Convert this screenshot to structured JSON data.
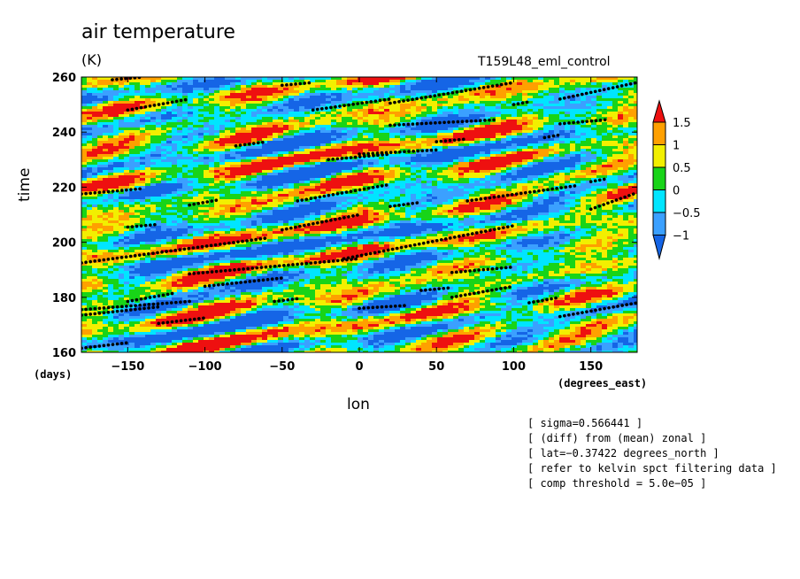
{
  "chart_data": {
    "type": "heatmap",
    "title": "air temperature",
    "units": "(K)",
    "experiment": "T159L48_eml_control",
    "xlabel": "lon",
    "ylabel": "time",
    "x_units": "(degrees_east)",
    "y_units": "(days)",
    "xlim": [
      -180,
      180
    ],
    "ylim": [
      160,
      260
    ],
    "x_ticks": [
      -150,
      -100,
      -50,
      0,
      50,
      100,
      150
    ],
    "y_ticks": [
      160,
      180,
      200,
      220,
      240,
      260
    ],
    "x_tick_labels": [
      "−150",
      "−100",
      "−50",
      "0",
      "50",
      "100",
      "150"
    ],
    "y_tick_labels": [
      "160",
      "180",
      "200",
      "220",
      "240",
      "260"
    ],
    "colorbar": {
      "levels": [
        -1,
        -0.5,
        0,
        0.5,
        1,
        1.5
      ],
      "labels": [
        "−1",
        "−0.5",
        "0",
        "0.5",
        "1",
        "1.5"
      ],
      "colors": [
        "#1565e6",
        "#3ba0ff",
        "#00e5ff",
        "#18d418",
        "#f2ef00",
        "#ffa000",
        "#ee1010"
      ]
    },
    "kelvin_signal_tracks": [
      {
        "lon": [
          -180,
          -150
        ],
        "time": [
          161.5,
          163.5
        ]
      },
      {
        "lon": [
          -180,
          -130
        ],
        "time": [
          173.5,
          176.5
        ]
      },
      {
        "lon": [
          -180,
          -110
        ],
        "time": [
          175.5,
          178.5
        ]
      },
      {
        "lon": [
          -150,
          -120
        ],
        "time": [
          178.5,
          181.5
        ]
      },
      {
        "lon": [
          -130,
          -100
        ],
        "time": [
          170.5,
          172.5
        ]
      },
      {
        "lon": [
          -180,
          -60
        ],
        "time": [
          192.5,
          201.5
        ]
      },
      {
        "lon": [
          -150,
          -130
        ],
        "time": [
          205.5,
          206.5
        ]
      },
      {
        "lon": [
          -110,
          -90
        ],
        "time": [
          213.5,
          215.5
        ]
      },
      {
        "lon": [
          -180,
          -140
        ],
        "time": [
          217.5,
          219.5
        ]
      },
      {
        "lon": [
          -110,
          0
        ],
        "time": [
          188.5,
          194
        ]
      },
      {
        "lon": [
          -10,
          100
        ],
        "time": [
          194,
          206
        ]
      },
      {
        "lon": [
          -100,
          -50
        ],
        "time": [
          184,
          187
        ]
      },
      {
        "lon": [
          -55,
          -40
        ],
        "time": [
          178.5,
          179.5
        ]
      },
      {
        "lon": [
          -50,
          0
        ],
        "time": [
          204.5,
          210
        ]
      },
      {
        "lon": [
          -40,
          20
        ],
        "time": [
          215,
          221
        ]
      },
      {
        "lon": [
          20,
          40
        ],
        "time": [
          213,
          214.5
        ]
      },
      {
        "lon": [
          0,
          30
        ],
        "time": [
          176,
          177
        ]
      },
      {
        "lon": [
          40,
          60
        ],
        "time": [
          182.5,
          183.5
        ]
      },
      {
        "lon": [
          60,
          100
        ],
        "time": [
          180,
          184
        ]
      },
      {
        "lon": [
          60,
          100
        ],
        "time": [
          189,
          191
        ]
      },
      {
        "lon": [
          70,
          140
        ],
        "time": [
          215,
          220.5
        ]
      },
      {
        "lon": [
          0,
          50
        ],
        "time": [
          232,
          233.5
        ]
      },
      {
        "lon": [
          -20,
          20
        ],
        "time": [
          230,
          232
        ]
      },
      {
        "lon": [
          50,
          70
        ],
        "time": [
          236.5,
          237.5
        ]
      },
      {
        "lon": [
          20,
          90
        ],
        "time": [
          242.5,
          244.5
        ]
      },
      {
        "lon": [
          -30,
          20
        ],
        "time": [
          248,
          252
        ]
      },
      {
        "lon": [
          20,
          100
        ],
        "time": [
          250.5,
          258
        ]
      },
      {
        "lon": [
          -50,
          -30
        ],
        "time": [
          257,
          258
        ]
      },
      {
        "lon": [
          -160,
          -140
        ],
        "time": [
          259,
          260
        ]
      },
      {
        "lon": [
          -150,
          -110
        ],
        "time": [
          248,
          252
        ]
      },
      {
        "lon": [
          -80,
          -60
        ],
        "time": [
          235,
          236.5
        ]
      },
      {
        "lon": [
          100,
          110
        ],
        "time": [
          250,
          251
        ]
      },
      {
        "lon": [
          130,
          180
        ],
        "time": [
          252,
          258
        ]
      },
      {
        "lon": [
          130,
          160
        ],
        "time": [
          243,
          244.5
        ]
      },
      {
        "lon": [
          120,
          130
        ],
        "time": [
          238,
          239
        ]
      },
      {
        "lon": [
          150,
          180
        ],
        "time": [
          212,
          218
        ]
      },
      {
        "lon": [
          130,
          180
        ],
        "time": [
          173,
          178
        ]
      },
      {
        "lon": [
          110,
          130
        ],
        "time": [
          178,
          180
        ]
      },
      {
        "lon": [
          150,
          160
        ],
        "time": [
          222,
          223
        ]
      }
    ]
  }
}
